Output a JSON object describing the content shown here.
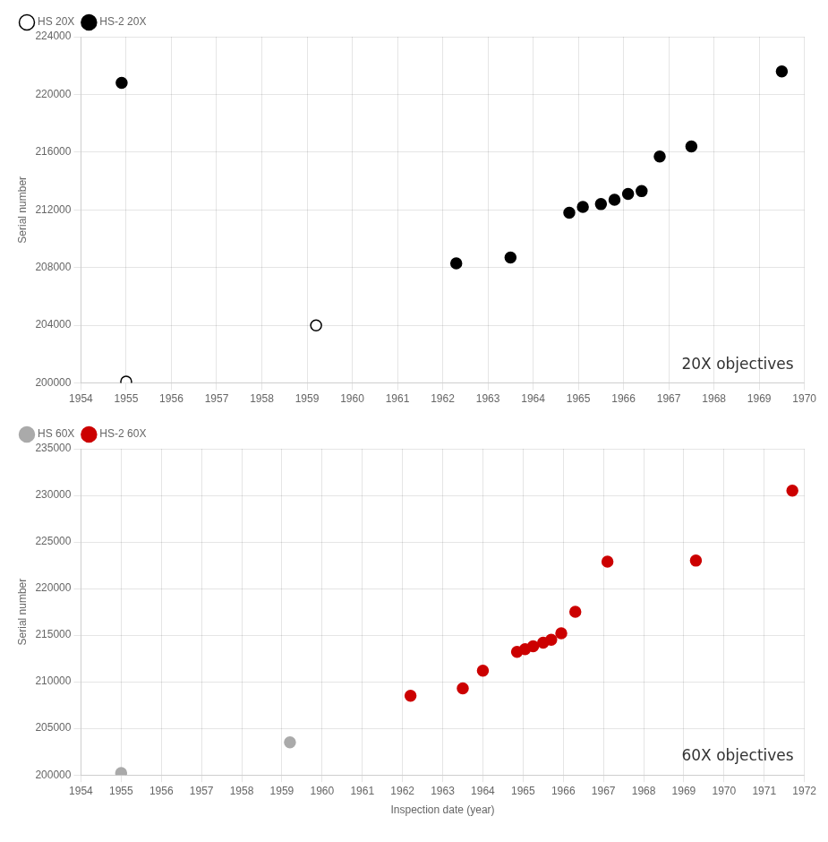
{
  "chart_data": [
    {
      "type": "scatter",
      "title": "20X objectives",
      "ylabel": "Serial number",
      "xlim": [
        1954,
        1970
      ],
      "xticks": [
        1954,
        1955,
        1956,
        1957,
        1958,
        1959,
        1960,
        1961,
        1962,
        1963,
        1964,
        1965,
        1966,
        1967,
        1968,
        1969,
        1970
      ],
      "ylim": [
        200000,
        224000
      ],
      "yticks": [
        200000,
        204000,
        208000,
        212000,
        216000,
        220000,
        224000
      ],
      "grid": true,
      "legend": "upper left",
      "series": [
        {
          "name": "HS 20X",
          "color": "white",
          "marker": "o",
          "x": [
            1955.0,
            1959.2
          ],
          "values": [
            200100,
            204000
          ]
        },
        {
          "name": "HS-2 20X",
          "color": "black",
          "marker": "o",
          "x": [
            1954.9,
            1962.3,
            1963.5,
            1964.8,
            1965.1,
            1965.5,
            1965.8,
            1966.1,
            1966.4,
            1966.8,
            1967.5,
            1969.5
          ],
          "values": [
            220800,
            208300,
            208700,
            211800,
            212200,
            212400,
            212700,
            213100,
            213300,
            215700,
            216400,
            221600
          ]
        }
      ]
    },
    {
      "type": "scatter",
      "title": "60X objectives",
      "ylabel": "Serial number",
      "xlabel": "Inspection date (year)",
      "xlim": [
        1954,
        1972
      ],
      "xticks": [
        1954,
        1955,
        1956,
        1957,
        1958,
        1959,
        1960,
        1961,
        1962,
        1963,
        1964,
        1965,
        1966,
        1967,
        1968,
        1969,
        1970,
        1971,
        1972
      ],
      "ylim": [
        200000,
        235000
      ],
      "yticks": [
        200000,
        205000,
        210000,
        215000,
        220000,
        225000,
        230000,
        235000
      ],
      "grid": true,
      "legend": "upper left",
      "series": [
        {
          "name": "HS 60X",
          "color": "#aaaaaa",
          "marker": "o",
          "x": [
            1955.0,
            1959.2
          ],
          "values": [
            200200,
            203500
          ]
        },
        {
          "name": "HS-2 60X",
          "color": "#cc0000",
          "marker": "o",
          "x": [
            1962.2,
            1963.5,
            1964.0,
            1964.85,
            1965.05,
            1965.25,
            1965.5,
            1965.7,
            1965.95,
            1966.3,
            1967.1,
            1969.3,
            1971.7
          ],
          "values": [
            208500,
            209300,
            211200,
            213200,
            213500,
            213800,
            214200,
            214500,
            215200,
            217500,
            222900,
            223000,
            230500
          ]
        }
      ]
    }
  ]
}
